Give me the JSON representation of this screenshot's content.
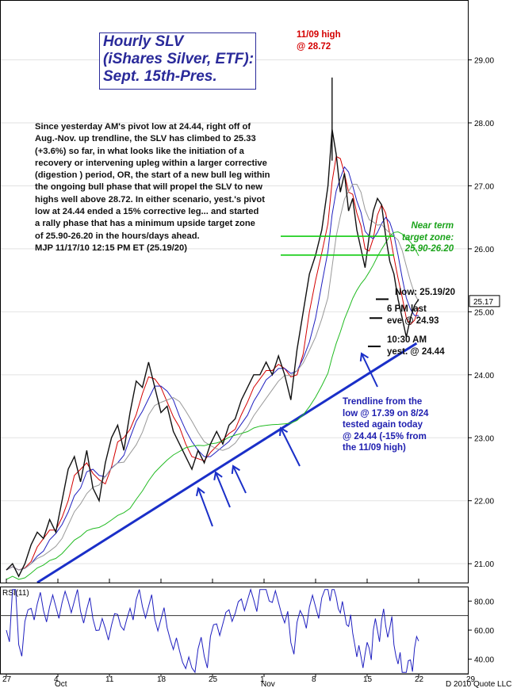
{
  "chart_data": {
    "type": "line",
    "title": [
      "Hourly SLV",
      "(iShares Silver, ETF):",
      "Sept. 15th-Pres."
    ],
    "price_axis": {
      "ylim": [
        20.7,
        29.8
      ],
      "ticks": [
        "21.00",
        "22.00",
        "23.00",
        "24.00",
        "25.00",
        "26.00",
        "27.00",
        "28.00",
        "29.00"
      ],
      "tick_values": [
        21,
        22,
        23,
        24,
        25,
        26,
        27,
        28,
        29
      ]
    },
    "last_price_label": "25.17",
    "last_price_value": 25.17,
    "x_axis": {
      "day_range": [
        0,
        34
      ],
      "ticks": [
        {
          "label": "27",
          "day": 0
        },
        {
          "label": "4",
          "day": 5
        },
        {
          "label": "11",
          "day": 10
        },
        {
          "label": "18",
          "day": 15
        },
        {
          "label": "25",
          "day": 20
        },
        {
          "label": "1",
          "day": 25
        },
        {
          "label": "8",
          "day": 30
        },
        {
          "label": "15",
          "day": 35
        },
        {
          "label": "22",
          "day": 40
        },
        {
          "label": "29",
          "day": 45
        }
      ],
      "month_labels": [
        {
          "label": "Oct",
          "day": 5
        },
        {
          "label": "Nov",
          "day": 25
        }
      ]
    },
    "series": [
      {
        "name": "",
        "points": [
          [
            0,
            20.9
          ],
          [
            0.6,
            21.0
          ],
          [
            1.2,
            20.8
          ],
          [
            1.8,
            21.0
          ],
          [
            2.4,
            21.3
          ],
          [
            3,
            21.5
          ],
          [
            3.6,
            21.4
          ],
          [
            4.2,
            21.7
          ],
          [
            4.8,
            21.5
          ],
          [
            5.4,
            22.0
          ],
          [
            6,
            22.5
          ],
          [
            6.6,
            22.7
          ],
          [
            7.2,
            22.3
          ],
          [
            7.8,
            22.8
          ],
          [
            8.4,
            22.2
          ],
          [
            9,
            22.0
          ],
          [
            9.6,
            22.6
          ],
          [
            10.2,
            23.0
          ],
          [
            10.8,
            23.2
          ],
          [
            11.4,
            22.8
          ],
          [
            12,
            23.4
          ],
          [
            12.6,
            23.9
          ],
          [
            13.2,
            23.8
          ],
          [
            13.8,
            24.2
          ],
          [
            14.4,
            23.8
          ],
          [
            15,
            23.4
          ],
          [
            15.6,
            23.5
          ],
          [
            16.2,
            23.1
          ],
          [
            16.8,
            22.9
          ],
          [
            17.4,
            22.7
          ],
          [
            18,
            22.5
          ],
          [
            18.6,
            22.8
          ],
          [
            19.2,
            22.6
          ],
          [
            19.8,
            22.9
          ],
          [
            20.4,
            23.1
          ],
          [
            21,
            22.9
          ],
          [
            21.6,
            23.2
          ],
          [
            22.2,
            23.3
          ],
          [
            22.8,
            23.6
          ],
          [
            23.4,
            23.8
          ],
          [
            24,
            24.0
          ],
          [
            24.6,
            24.0
          ],
          [
            25.2,
            24.2
          ],
          [
            25.8,
            24.0
          ],
          [
            26.4,
            24.3
          ],
          [
            27,
            24.0
          ],
          [
            27.6,
            23.6
          ],
          [
            28.2,
            24.4
          ],
          [
            28.8,
            25.0
          ],
          [
            29.4,
            25.6
          ],
          [
            30,
            25.9
          ],
          [
            30.6,
            26.3
          ],
          [
            31.2,
            27.0
          ],
          [
            31.6,
            27.9
          ],
          [
            32,
            27.5
          ],
          [
            32.4,
            26.9
          ],
          [
            32.8,
            27.2
          ],
          [
            33.2,
            26.6
          ],
          [
            33.6,
            26.8
          ],
          [
            34,
            26.3
          ],
          [
            34.4,
            26.0
          ],
          [
            34.8,
            25.7
          ],
          [
            35.2,
            26.2
          ],
          [
            35.6,
            26.6
          ],
          [
            36,
            26.8
          ],
          [
            36.4,
            26.7
          ],
          [
            36.8,
            26.2
          ],
          [
            37.2,
            25.8
          ],
          [
            37.6,
            25.6
          ],
          [
            38,
            25.2
          ],
          [
            38.4,
            24.9
          ],
          [
            38.8,
            24.6
          ],
          [
            39.2,
            24.9
          ],
          [
            39.6,
            25.1
          ],
          [
            40,
            25.2
          ]
        ]
      }
    ],
    "trendline": {
      "from": [
        3,
        20.7
      ],
      "to": [
        39.8,
        24.5
      ]
    },
    "target_zone": {
      "upper": 26.2,
      "lower": 25.9
    },
    "marker_lines": [
      {
        "at": 25.2
      },
      {
        "at": 24.9
      },
      {
        "at": 24.45
      }
    ],
    "rsi": {
      "label": "RSI(11)",
      "ylim": [
        30,
        90
      ],
      "ticks": [
        "80.00",
        "60.00",
        "40.00"
      ],
      "tick_values": [
        80,
        60,
        40
      ],
      "guides": [
        70,
        30
      ]
    },
    "copyright": "D 2010 Quote LLC"
  },
  "commentary": [
    "Since yesterday AM's pivot low at 24.44, right off of",
    "Aug.-Nov. up trendline, the SLV has climbed to 25.33",
    "(+3.6%) so far, in what looks like the initiation of a",
    "recovery or intervening upleg within a larger corrective",
    "(digestion ) period, OR, the start of a new bull leg within",
    "the ongoing bull phase that will propel the SLV to new",
    "highs well above 28.72. In either scenario, yest.'s pivot",
    "low at 24.44 ended a 15% corrective leg... and started",
    "a rally phase that has a minimum upside target zone",
    "of 25.90-26.20 in the hours/days ahead.",
    "MJP 11/17/10  12:15 PM ET  (25.19/20)"
  ],
  "annotations": {
    "high": [
      "11/09 high",
      "@ 28.72"
    ],
    "target": [
      "Near term",
      "target zone:",
      "25.90-26.20"
    ],
    "now": "Now: 25.19/20",
    "last_eve": [
      "6 PM last",
      "eve @ 24.93"
    ],
    "yest_low": [
      "10:30 AM",
      "yest. @ 24.44"
    ],
    "trendline_note": [
      "Trendline from the",
      "low @ 17.39 on 8/24",
      "tested again today",
      "@ 24.44 (-15% from",
      "the 11/09 high)"
    ]
  },
  "colors": {
    "price": "#111111",
    "ma_fast": "#d40000",
    "ma_mid": "#2020c0",
    "ma_slow": "#999999",
    "ma_long": "#22bb22",
    "trendline": "#1a2fc8",
    "target_line": "#11cc11",
    "rsi": "#2020c0"
  }
}
